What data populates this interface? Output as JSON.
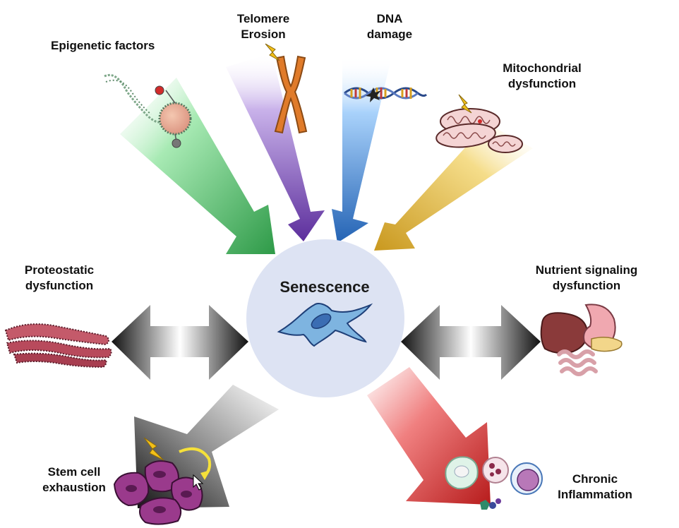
{
  "center": {
    "label": "Senescence"
  },
  "factors": {
    "epigenetic": {
      "label": "Epigenetic factors"
    },
    "telomere": {
      "line1": "Telomere",
      "line2": "Erosion"
    },
    "dna": {
      "line1": "DNA",
      "line2": "damage"
    },
    "mito": {
      "line1": "Mitochondrial",
      "line2": "dysfunction"
    },
    "proteo": {
      "line1": "Proteostatic",
      "line2": "dysfunction"
    },
    "nutrient": {
      "line1": "Nutrient signaling",
      "line2": "dysfunction"
    },
    "stem": {
      "line1": "Stem cell",
      "line2": "exhaustion"
    },
    "inflammation": {
      "line1": "Chronic",
      "line2": "Inflammation"
    }
  },
  "colors": {
    "epigenetic_arrow": "#2f9e4a",
    "telomere_arrow": "#6a3aa8",
    "dna_arrow": "#2a6fc0",
    "mito_arrow": "#d4a62a",
    "side_arrows": "#1a1a1a",
    "stem_arrow": "#1a1a1a",
    "inflammation_arrow": "#c62828",
    "center_circle": "#dde3f3"
  }
}
